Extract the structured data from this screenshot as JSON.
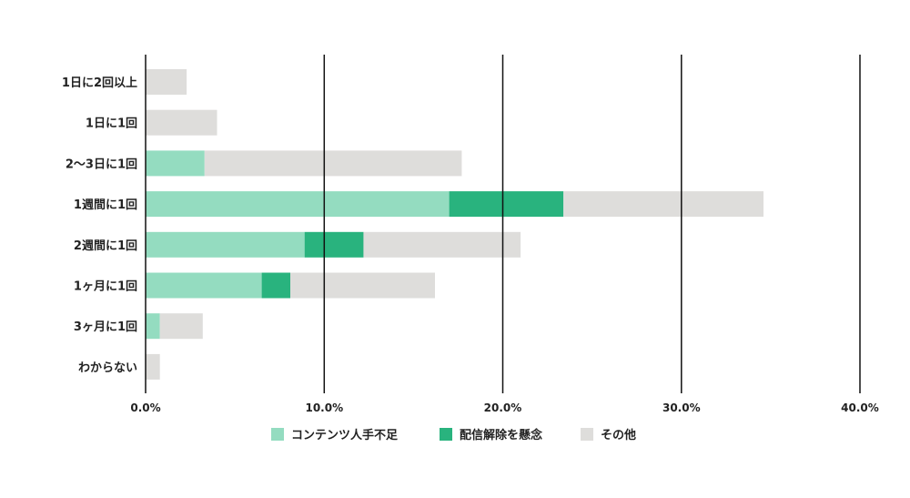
{
  "chart_data": {
    "type": "bar",
    "orientation": "horizontal",
    "stacked": true,
    "title": "",
    "xlabel": "",
    "ylabel": "",
    "xlim": [
      0,
      40
    ],
    "x_ticks": [
      0,
      10,
      20,
      30,
      40
    ],
    "x_tick_labels": [
      "0.0%",
      "10.0%",
      "20.0%",
      "30.0%",
      "40.0%"
    ],
    "grid": true,
    "legend_position": "bottom",
    "categories": [
      "1日に2回以上",
      "1日に1回",
      "2〜3日に1回",
      "1週間に1回",
      "2週間に1回",
      "1ヶ月に1回",
      "3ヶ月に1回",
      "わからない"
    ],
    "series": [
      {
        "name": "コンテンツ人手不足",
        "color": "#94dcc0",
        "values": [
          0,
          0,
          3.3,
          17.0,
          8.9,
          6.5,
          0.8,
          0
        ]
      },
      {
        "name": "配信解除を懸念",
        "color": "#29b37e",
        "values": [
          0,
          0,
          0,
          6.4,
          3.3,
          1.6,
          0,
          0
        ]
      },
      {
        "name": "その他",
        "color": "#dedddb",
        "values": [
          2.3,
          4.0,
          14.4,
          11.2,
          8.8,
          8.1,
          2.4,
          0.8
        ]
      }
    ]
  }
}
